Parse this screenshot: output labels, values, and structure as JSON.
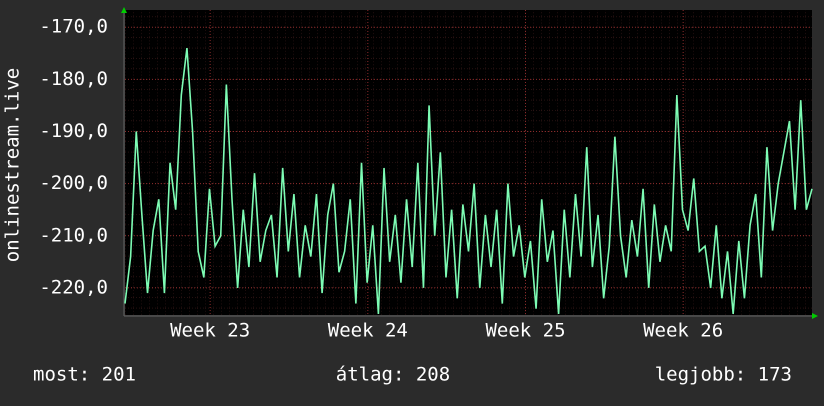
{
  "chart_data": {
    "type": "line",
    "y_label": "onlinestream.live",
    "xlim": [
      0,
      30.5
    ],
    "ylim": [
      -225.2,
      -166.7
    ],
    "yticks": [
      {
        "value": -170,
        "label": "-170,0"
      },
      {
        "value": -180,
        "label": "-180,0"
      },
      {
        "value": -190,
        "label": "-190,0"
      },
      {
        "value": -200,
        "label": "-200,0"
      },
      {
        "value": -210,
        "label": "-210,0"
      },
      {
        "value": -220,
        "label": "-220,0"
      }
    ],
    "xticks": [
      {
        "value": 3.78,
        "label": "Week 23"
      },
      {
        "value": 10.78,
        "label": "Week 24"
      },
      {
        "value": 17.78,
        "label": "Week 25"
      },
      {
        "value": 24.78,
        "label": "Week 26"
      }
    ],
    "grid": true,
    "series": [
      {
        "color": "#7dfcb4",
        "x": [
          0,
          0.25,
          0.5,
          0.75,
          1,
          1.25,
          1.5,
          1.75,
          2,
          2.25,
          2.5,
          2.75,
          3,
          3.25,
          3.5,
          3.75,
          4,
          4.25,
          4.5,
          4.75,
          5,
          5.25,
          5.5,
          5.75,
          6,
          6.25,
          6.5,
          6.75,
          7,
          7.25,
          7.5,
          7.75,
          8,
          8.25,
          8.5,
          8.75,
          9,
          9.25,
          9.5,
          9.75,
          10,
          10.25,
          10.5,
          10.75,
          11,
          11.25,
          11.5,
          11.75,
          12,
          12.25,
          12.5,
          12.75,
          13,
          13.25,
          13.5,
          13.75,
          14,
          14.25,
          14.5,
          14.75,
          15,
          15.25,
          15.5,
          15.75,
          16,
          16.25,
          16.5,
          16.75,
          17,
          17.25,
          17.5,
          17.75,
          18,
          18.25,
          18.5,
          18.75,
          19,
          19.25,
          19.5,
          19.75,
          20,
          20.25,
          20.5,
          20.75,
          21,
          21.25,
          21.5,
          21.75,
          22,
          22.25,
          22.5,
          22.75,
          23,
          23.25,
          23.5,
          23.75,
          24,
          24.25,
          24.5,
          24.75,
          25,
          25.25,
          25.5,
          25.75,
          26,
          26.25,
          26.5,
          26.75,
          27,
          27.25,
          27.5,
          27.75,
          28,
          28.25,
          28.5,
          28.75,
          29,
          29.25,
          29.5,
          29.75,
          30,
          30.25,
          30.5
        ],
        "values": [
          -223,
          -214,
          -190,
          -206,
          -221,
          -209,
          -203,
          -221,
          -196,
          -205,
          -183,
          -174,
          -190,
          -213,
          -218,
          -201,
          -212,
          -210,
          -181,
          -203,
          -220,
          -205,
          -216,
          -198,
          -215,
          -209,
          -206,
          -218,
          -197,
          -213,
          -202,
          -218,
          -208,
          -214,
          -202,
          -221,
          -206,
          -200,
          -217,
          -213,
          -203,
          -223,
          -196,
          -219,
          -208,
          -225,
          -197,
          -215,
          -206,
          -219,
          -203,
          -216,
          -196,
          -220,
          -185,
          -210,
          -194,
          -218,
          -205,
          -222,
          -204,
          -213,
          -200,
          -220,
          -206,
          -216,
          -205,
          -223,
          -200,
          -214,
          -208,
          -218,
          -211,
          -224,
          -203,
          -215,
          -209,
          -225,
          -205,
          -218,
          -202,
          -214,
          -193,
          -216,
          -206,
          -222,
          -212,
          -191,
          -210,
          -218,
          -207,
          -214,
          -201,
          -220,
          -204,
          -215,
          -208,
          -213,
          -183,
          -205,
          -209,
          -199,
          -213,
          -212,
          -220,
          -208,
          -222,
          -213,
          -225,
          -211,
          -222,
          -208,
          -202,
          -218,
          -193,
          -209,
          -200,
          -194,
          -188,
          -205,
          -184,
          -205,
          -201
        ]
      }
    ]
  },
  "footer": {
    "current": "most: 201",
    "average": "átlag: 208",
    "best": "legjobb: 173"
  }
}
